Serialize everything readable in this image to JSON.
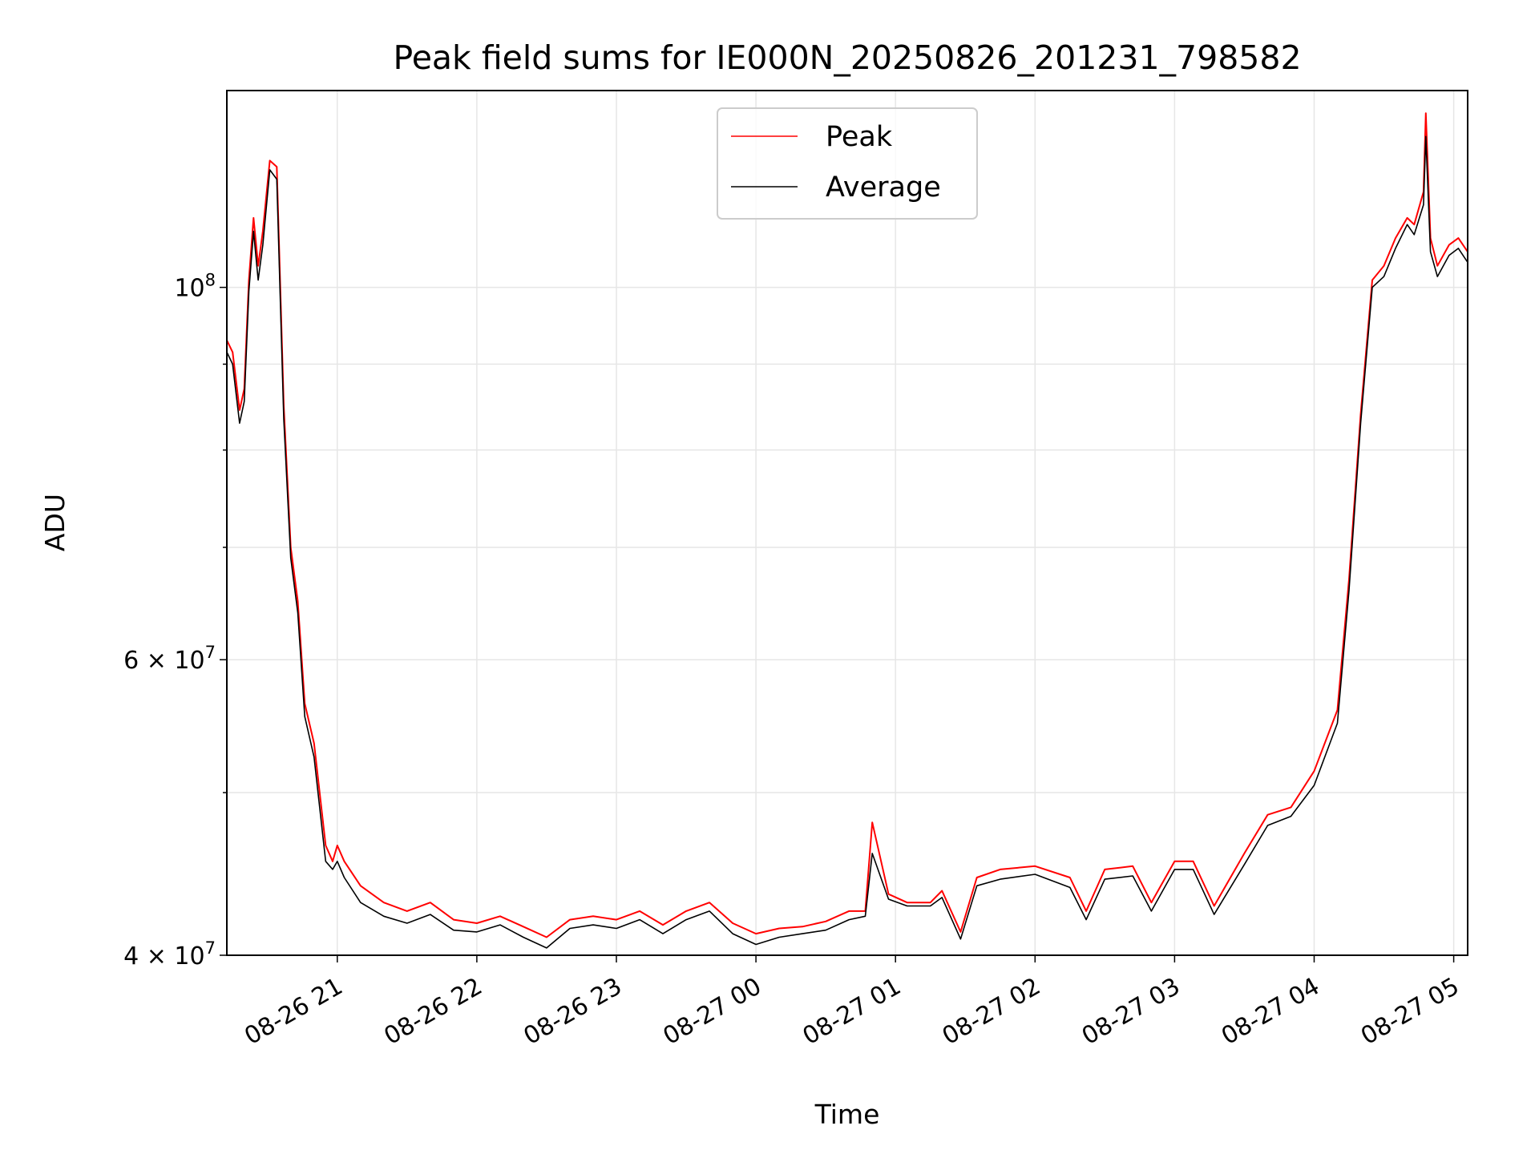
{
  "chart_data": {
    "type": "line",
    "title": "Peak field sums for IE000N_20250826_201231_798582",
    "xlabel": "Time",
    "ylabel": "ADU",
    "xlim": [
      "2025-08-26T20:12:31",
      "2025-08-27T05:06:00"
    ],
    "ylim": [
      40000000,
      131000000
    ],
    "yscale": "log",
    "grid": true,
    "legend": {
      "location": "upper center",
      "entries": [
        "Peak",
        "Average"
      ]
    },
    "x_ticks": [
      "08-26 21",
      "08-26 22",
      "08-26 23",
      "08-27 00",
      "08-27 01",
      "08-27 02",
      "08-27 03",
      "08-27 04",
      "08-27 05"
    ],
    "y_ticks": [
      {
        "value": 40000000,
        "label": "4 × 10^7",
        "base": "4 × 10",
        "exp": "7"
      },
      {
        "value": 60000000,
        "label": "6 × 10^7",
        "base": "6 × 10",
        "exp": "7"
      },
      {
        "value": 100000000,
        "label": "10^8",
        "base": "10",
        "exp": "8"
      }
    ],
    "x": [
      "2025-08-26T20:12:31",
      "2025-08-26T20:15:00",
      "2025-08-26T20:18:00",
      "2025-08-26T20:20:00",
      "2025-08-26T20:22:00",
      "2025-08-26T20:24:00",
      "2025-08-26T20:26:00",
      "2025-08-26T20:28:00",
      "2025-08-26T20:31:00",
      "2025-08-26T20:34:00",
      "2025-08-26T20:37:00",
      "2025-08-26T20:40:00",
      "2025-08-26T20:43:00",
      "2025-08-26T20:46:00",
      "2025-08-26T20:50:00",
      "2025-08-26T20:55:00",
      "2025-08-26T20:58:00",
      "2025-08-26T21:00:00",
      "2025-08-26T21:03:00",
      "2025-08-26T21:10:00",
      "2025-08-26T21:20:00",
      "2025-08-26T21:30:00",
      "2025-08-26T21:40:00",
      "2025-08-26T21:50:00",
      "2025-08-26T22:00:00",
      "2025-08-26T22:10:00",
      "2025-08-26T22:20:00",
      "2025-08-26T22:30:00",
      "2025-08-26T22:40:00",
      "2025-08-26T22:50:00",
      "2025-08-26T23:00:00",
      "2025-08-26T23:10:00",
      "2025-08-26T23:20:00",
      "2025-08-26T23:30:00",
      "2025-08-26T23:40:00",
      "2025-08-26T23:50:00",
      "2025-08-27T00:00:00",
      "2025-08-27T00:10:00",
      "2025-08-27T00:20:00",
      "2025-08-27T00:30:00",
      "2025-08-27T00:40:00",
      "2025-08-27T00:47:00",
      "2025-08-27T00:50:00",
      "2025-08-27T00:57:00",
      "2025-08-27T01:05:00",
      "2025-08-27T01:15:00",
      "2025-08-27T01:20:00",
      "2025-08-27T01:28:00",
      "2025-08-27T01:35:00",
      "2025-08-27T01:45:00",
      "2025-08-27T02:00:00",
      "2025-08-27T02:15:00",
      "2025-08-27T02:22:00",
      "2025-08-27T02:30:00",
      "2025-08-27T02:42:00",
      "2025-08-27T02:50:00",
      "2025-08-27T03:00:00",
      "2025-08-27T03:08:00",
      "2025-08-27T03:17:00",
      "2025-08-27T03:30:00",
      "2025-08-27T03:40:00",
      "2025-08-27T03:50:00",
      "2025-08-27T04:00:00",
      "2025-08-27T04:10:00",
      "2025-08-27T04:15:00",
      "2025-08-27T04:20:00",
      "2025-08-27T04:25:00",
      "2025-08-27T04:30:00",
      "2025-08-27T04:35:00",
      "2025-08-27T04:40:00",
      "2025-08-27T04:43:00",
      "2025-08-27T04:47:00",
      "2025-08-27T04:48:00",
      "2025-08-27T04:50:00",
      "2025-08-27T04:53:00",
      "2025-08-27T04:58:00",
      "2025-08-27T05:02:00",
      "2025-08-27T05:06:00"
    ],
    "series": [
      {
        "name": "Peak",
        "color": "#ff0000",
        "values": [
          93000000,
          91500000,
          84500000,
          87000000,
          101000000,
          110000000,
          103000000,
          108000000,
          119000000,
          118000000,
          85000000,
          70000000,
          65000000,
          56500000,
          53500000,
          46500000,
          45500000,
          46500000,
          45500000,
          44000000,
          43000000,
          42500000,
          43000000,
          42000000,
          41800000,
          42200000,
          41600000,
          41000000,
          42000000,
          42200000,
          42000000,
          42500000,
          41700000,
          42500000,
          43000000,
          41800000,
          41200000,
          41500000,
          41600000,
          41900000,
          42500000,
          42500000,
          48000000,
          43500000,
          43000000,
          43000000,
          43700000,
          41300000,
          44500000,
          45000000,
          45200000,
          44500000,
          42500000,
          45000000,
          45200000,
          43000000,
          45500000,
          45500000,
          42800000,
          46000000,
          48500000,
          49000000,
          51500000,
          56000000,
          67000000,
          84000000,
          101000000,
          103000000,
          107000000,
          110000000,
          109000000,
          114000000,
          127000000,
          107000000,
          103000000,
          106000000,
          107000000,
          105000000
        ]
      },
      {
        "name": "Average",
        "color": "#000000",
        "values": [
          91500000,
          90000000,
          83000000,
          85500000,
          99500000,
          108000000,
          101000000,
          106000000,
          117500000,
          116000000,
          83500000,
          69000000,
          64000000,
          55500000,
          52500000,
          45500000,
          45000000,
          45500000,
          44500000,
          43000000,
          42200000,
          41800000,
          42300000,
          41400000,
          41300000,
          41700000,
          41000000,
          40400000,
          41500000,
          41700000,
          41500000,
          42000000,
          41200000,
          42000000,
          42500000,
          41200000,
          40600000,
          41000000,
          41200000,
          41400000,
          42000000,
          42200000,
          46000000,
          43200000,
          42800000,
          42800000,
          43300000,
          40900000,
          44000000,
          44400000,
          44700000,
          43900000,
          42000000,
          44400000,
          44600000,
          42500000,
          45000000,
          45000000,
          42300000,
          45300000,
          47800000,
          48400000,
          50500000,
          55000000,
          66000000,
          83000000,
          100000000,
          101500000,
          105500000,
          109000000,
          107500000,
          112000000,
          123000000,
          105000000,
          101500000,
          104500000,
          105500000,
          103500000
        ]
      }
    ]
  }
}
